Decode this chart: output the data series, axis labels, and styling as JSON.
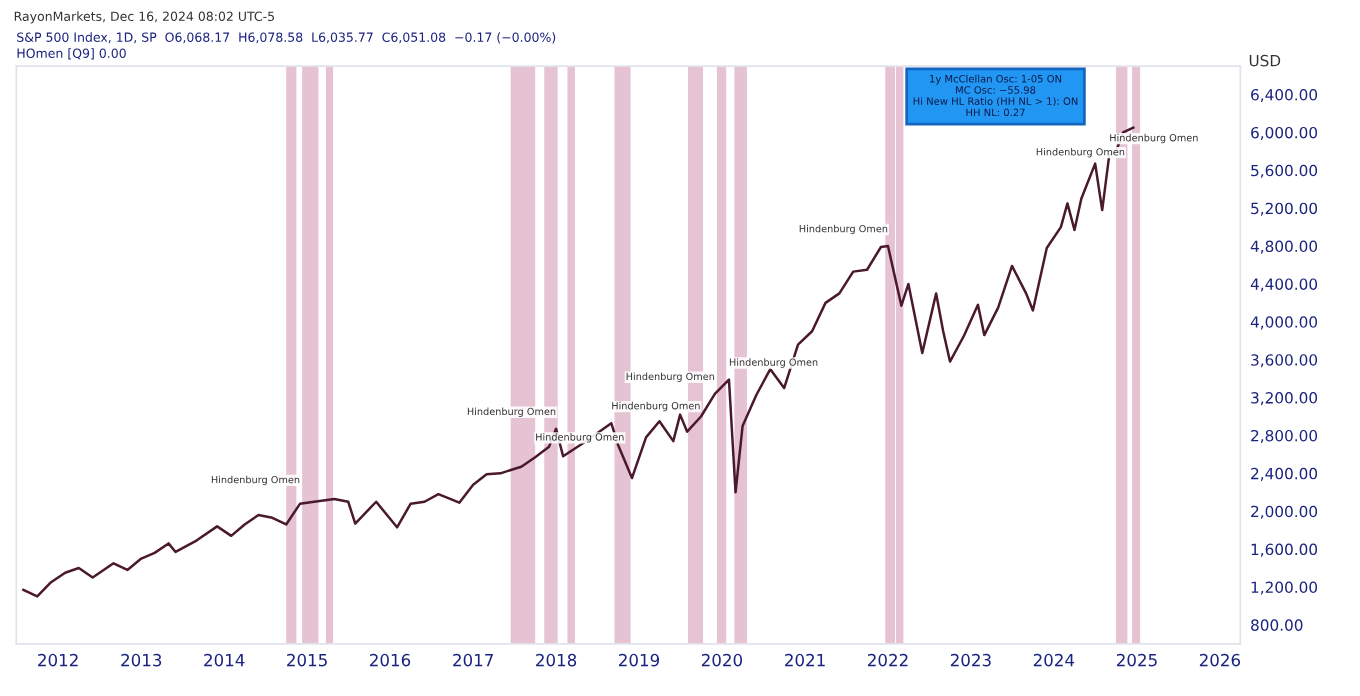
{
  "chart_data": {
    "type": "line",
    "title": "RayonMarkets, Dec 16, 2024 08:02 UTC-5",
    "subtitle": "S&P 500 Index, 1D, SP  O6,068.17  H6,078.58  L6,035.77  C6,051.08  −0.17 (−0.00%)",
    "ylabel": "USD",
    "x": [
      "2011-08",
      "2011-10",
      "2011-12",
      "2012-02",
      "2012-04",
      "2012-06",
      "2012-09",
      "2012-11",
      "2013-01",
      "2013-03",
      "2013-05",
      "2013-06",
      "2013-09",
      "2013-12",
      "2014-02",
      "2014-04",
      "2014-06",
      "2014-08",
      "2014-10",
      "2014-12",
      "2015-02",
      "2015-05",
      "2015-07",
      "2015-08",
      "2015-11",
      "2016-02",
      "2016-04",
      "2016-06",
      "2016-08",
      "2016-11",
      "2017-01",
      "2017-03",
      "2017-05",
      "2017-08",
      "2017-10",
      "2017-12",
      "2018-01",
      "2018-02",
      "2018-05",
      "2018-09",
      "2018-10",
      "2018-12",
      "2019-02",
      "2019-04",
      "2019-06",
      "2019-07",
      "2019-08",
      "2019-10",
      "2019-12",
      "2020-02",
      "2020-03",
      "2020-04",
      "2020-06",
      "2020-08",
      "2020-10",
      "2020-12",
      "2021-02",
      "2021-04",
      "2021-06",
      "2021-08",
      "2021-10",
      "2021-12",
      "2022-01",
      "2022-03",
      "2022-04",
      "2022-06",
      "2022-08",
      "2022-09",
      "2022-10",
      "2022-12",
      "2023-02",
      "2023-03",
      "2023-05",
      "2023-07",
      "2023-09",
      "2023-10",
      "2023-12",
      "2024-02",
      "2024-03",
      "2024-04",
      "2024-05",
      "2024-07",
      "2024-08",
      "2024-09",
      "2024-10",
      "2024-11",
      "2024-12-16"
    ],
    "series": [
      {
        "color": "#4a1a2c",
        "values": [
          1170,
          1100,
          1250,
          1350,
          1400,
          1300,
          1450,
          1380,
          1500,
          1560,
          1660,
          1570,
          1690,
          1840,
          1740,
          1860,
          1960,
          1930,
          1860,
          2080,
          2100,
          2130,
          2100,
          1870,
          2100,
          1830,
          2080,
          2100,
          2180,
          2090,
          2280,
          2390,
          2400,
          2470,
          2570,
          2680,
          2870,
          2580,
          2720,
          2930,
          2700,
          2350,
          2780,
          2950,
          2740,
          3020,
          2840,
          3000,
          3240,
          3390,
          2200,
          2900,
          3230,
          3500,
          3300,
          3760,
          3900,
          4200,
          4300,
          4530,
          4550,
          4790,
          4800,
          4170,
          4400,
          3670,
          4300,
          3900,
          3580,
          3850,
          4180,
          3860,
          4150,
          4590,
          4300,
          4120,
          4780,
          5000,
          5250,
          4970,
          5300,
          5670,
          5180,
          5760,
          5800,
          6000,
          6050
        ]
      }
    ],
    "xlim": [
      "2011-07",
      "2026-04"
    ],
    "xticks": [
      "2012",
      "2013",
      "2014",
      "2015",
      "2016",
      "2017",
      "2018",
      "2019",
      "2020",
      "2021",
      "2022",
      "2023",
      "2024",
      "2025",
      "2026"
    ],
    "ylim": [
      600,
      6700
    ],
    "yticks": [
      {
        "value": 800,
        "label": "800.00"
      },
      {
        "value": 1200,
        "label": "1,200.00"
      },
      {
        "value": 1600,
        "label": "1,600.00"
      },
      {
        "value": 2000,
        "label": "2,000.00"
      },
      {
        "value": 2400,
        "label": "2,400.00"
      },
      {
        "value": 2800,
        "label": "2,800.00"
      },
      {
        "value": 3200,
        "label": "3,200.00"
      },
      {
        "value": 3600,
        "label": "3,600.00"
      },
      {
        "value": 4000,
        "label": "4,000.00"
      },
      {
        "value": 4400,
        "label": "4,400.00"
      },
      {
        "value": 4800,
        "label": "4,800.00"
      },
      {
        "value": 5200,
        "label": "5,200.00"
      },
      {
        "value": 5600,
        "label": "5,600.00"
      },
      {
        "value": 6000,
        "label": "6,000.00"
      },
      {
        "value": 6400,
        "label": "6,400.00"
      }
    ],
    "bands": [
      {
        "axis": "x",
        "from": "2014-10-01",
        "to": "2014-11-15",
        "color": "#e6c3d2"
      },
      {
        "axis": "x",
        "from": "2014-12-10",
        "to": "2015-02-20",
        "color": "#e6c3d2"
      },
      {
        "axis": "x",
        "from": "2015-03-25",
        "to": "2015-04-25",
        "color": "#e6c3d2"
      },
      {
        "axis": "x",
        "from": "2017-06-15",
        "to": "2017-10-01",
        "color": "#e6c3d2"
      },
      {
        "axis": "x",
        "from": "2017-11-10",
        "to": "2018-01-08",
        "color": "#e6c3d2"
      },
      {
        "axis": "x",
        "from": "2018-02-20",
        "to": "2018-03-25",
        "color": "#e6c3d2"
      },
      {
        "axis": "x",
        "from": "2018-09-15",
        "to": "2018-11-25",
        "color": "#e6c3d2"
      },
      {
        "axis": "x",
        "from": "2019-08-05",
        "to": "2019-10-10",
        "color": "#e6c3d2"
      },
      {
        "axis": "x",
        "from": "2019-12-10",
        "to": "2020-01-20",
        "color": "#e6c3d2"
      },
      {
        "axis": "x",
        "from": "2020-02-25",
        "to": "2020-04-20",
        "color": "#e6c3d2"
      },
      {
        "axis": "x",
        "from": "2021-12-20",
        "to": "2022-02-01",
        "color": "#e6c3d2"
      },
      {
        "axis": "x",
        "from": "2022-02-05",
        "to": "2022-03-10",
        "color": "#e6c3d2"
      },
      {
        "axis": "x",
        "from": "2024-10-01",
        "to": "2024-11-20",
        "color": "#e6c3d2"
      },
      {
        "axis": "x",
        "from": "2024-12-10",
        "to": "2025-01-15",
        "color": "#e6c3d2"
      }
    ],
    "annotations": [
      "HOmen [Q9] 0.00",
      "1y McClellan Osc: 1-05 ON\nMC Osc: −55.98\nHi New HL Ratio (HH NL > 1): ON\nHH NL: 0.27",
      {
        "text": "Hindenburg Omen",
        "x": "2014-12",
        "y": 2150
      },
      {
        "text": "Hindenburg Omen",
        "x": "2017-10",
        "y": 2600
      },
      {
        "text": "Hindenburg Omen",
        "x": "2018-01",
        "y": 2870
      },
      {
        "text": "Hindenburg Omen",
        "x": "2018-09",
        "y": 2930
      },
      {
        "text": "Hindenburg Omen",
        "x": "2019-12",
        "y": 3240
      },
      {
        "text": "Hindenburg Omen",
        "x": "2020-02",
        "y": 3390
      },
      {
        "text": "Hindenburg Omen",
        "x": "2022-01",
        "y": 4800
      },
      {
        "text": "Hindenburg Omen",
        "x": "2024-09",
        "y": 5760
      },
      {
        "text": "Hindenburg Omen",
        "x": "2024-12-16",
        "y": 6051
      }
    ],
    "grid": false,
    "legend": false
  }
}
